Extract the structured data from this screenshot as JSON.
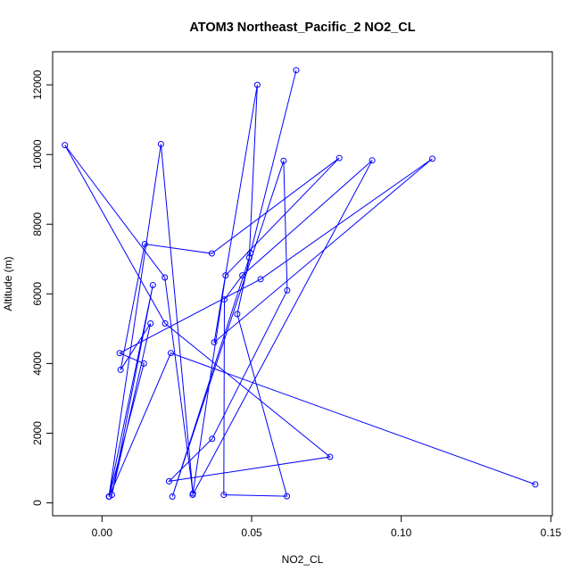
{
  "chart_data": {
    "type": "line",
    "title": "ATOM3 Northeast_Pacific_2 NO2_CL",
    "xlabel": "NO2_CL",
    "ylabel": "Altitude (m)",
    "xlim": [
      -0.0165,
      0.1505
    ],
    "ylim": [
      -370,
      12950
    ],
    "x_ticks": [
      {
        "value": 0.0,
        "label": "0.00"
      },
      {
        "value": 0.05,
        "label": "0.05"
      },
      {
        "value": 0.1,
        "label": "0.10"
      },
      {
        "value": 0.15,
        "label": "0.15"
      }
    ],
    "y_ticks": [
      {
        "value": 0,
        "label": "0"
      },
      {
        "value": 2000,
        "label": "2000"
      },
      {
        "value": 4000,
        "label": "4000"
      },
      {
        "value": 6000,
        "label": "6000"
      },
      {
        "value": 8000,
        "label": "8000"
      },
      {
        "value": 10000,
        "label": "10000"
      },
      {
        "value": 12000,
        "label": "12000"
      }
    ],
    "grid": false,
    "legend": "none",
    "color": "#0000ff",
    "series": [
      {
        "x": [
          0.0649,
          0.0496,
          0.0452,
          0.0618,
          0.0407,
          0.0409,
          0.0469,
          0.0903,
          0.0303,
          0.0413,
          0.0793,
          0.0367,
          0.0143,
          0.0062,
          0.0162,
          0.0033,
          0.017,
          0.0023,
          0.0197,
          0.0304,
          0.021,
          -0.0124,
          0.0211,
          0.0762,
          0.0224,
          0.0368,
          0.0619,
          0.0607,
          0.0235,
          0.0492,
          0.0519,
          0.0375,
          0.1104,
          0.053,
          0.0059,
          0.014,
          0.0024,
          0.023,
          0.1448
        ],
        "y": [
          12420,
          7170,
          5420,
          190,
          230,
          5840,
          6530,
          9830,
          230,
          6530,
          9900,
          7160,
          7430,
          3820,
          5150,
          230,
          6250,
          180,
          10300,
          270,
          6470,
          10270,
          5150,
          1320,
          620,
          1840,
          6100,
          9820,
          180,
          7040,
          12000,
          4610,
          9880,
          6420,
          4300,
          4000,
          180,
          4300,
          530
        ]
      }
    ]
  }
}
